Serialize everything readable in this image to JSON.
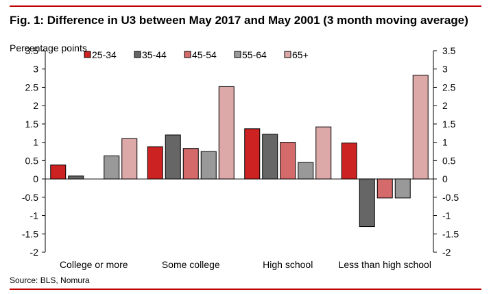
{
  "title": "Fig. 1: Difference in U3 between May 2017 and May 2001 (3 month moving average)",
  "source": "Source: BLS, Nomura",
  "chart_data": {
    "type": "bar",
    "ylabel": "Percentage points",
    "xlabel": "",
    "ylim": [
      -2,
      3.5
    ],
    "yticks": [
      "-2",
      "-1.5",
      "-1",
      "-0.5",
      "0",
      "0.5",
      "1",
      "1.5",
      "2",
      "2.5",
      "3",
      "3.5"
    ],
    "y2ticks": [
      "-2",
      "-1.5",
      "-1",
      "-0.5",
      "0",
      "0.5",
      "1",
      "1.5",
      "2",
      "2.5",
      "3",
      "3.5"
    ],
    "legend_position": "top",
    "grid": false,
    "categories": [
      "College or more",
      "Some college",
      "High school",
      "Less than high school"
    ],
    "series": [
      {
        "name": "25-34",
        "color": "#cc2222",
        "values": [
          0.38,
          0.88,
          1.37,
          0.98
        ]
      },
      {
        "name": "35-44",
        "color": "#666666",
        "values": [
          0.08,
          1.2,
          1.22,
          -1.3
        ]
      },
      {
        "name": "45-54",
        "color": "#d46a6a",
        "values": [
          0.0,
          0.83,
          1.0,
          -0.52
        ]
      },
      {
        "name": "55-64",
        "color": "#999999",
        "values": [
          0.63,
          0.75,
          0.45,
          -0.52
        ]
      },
      {
        "name": "65+",
        "color": "#dda8a8",
        "values": [
          1.1,
          2.52,
          1.42,
          2.83
        ]
      }
    ]
  }
}
